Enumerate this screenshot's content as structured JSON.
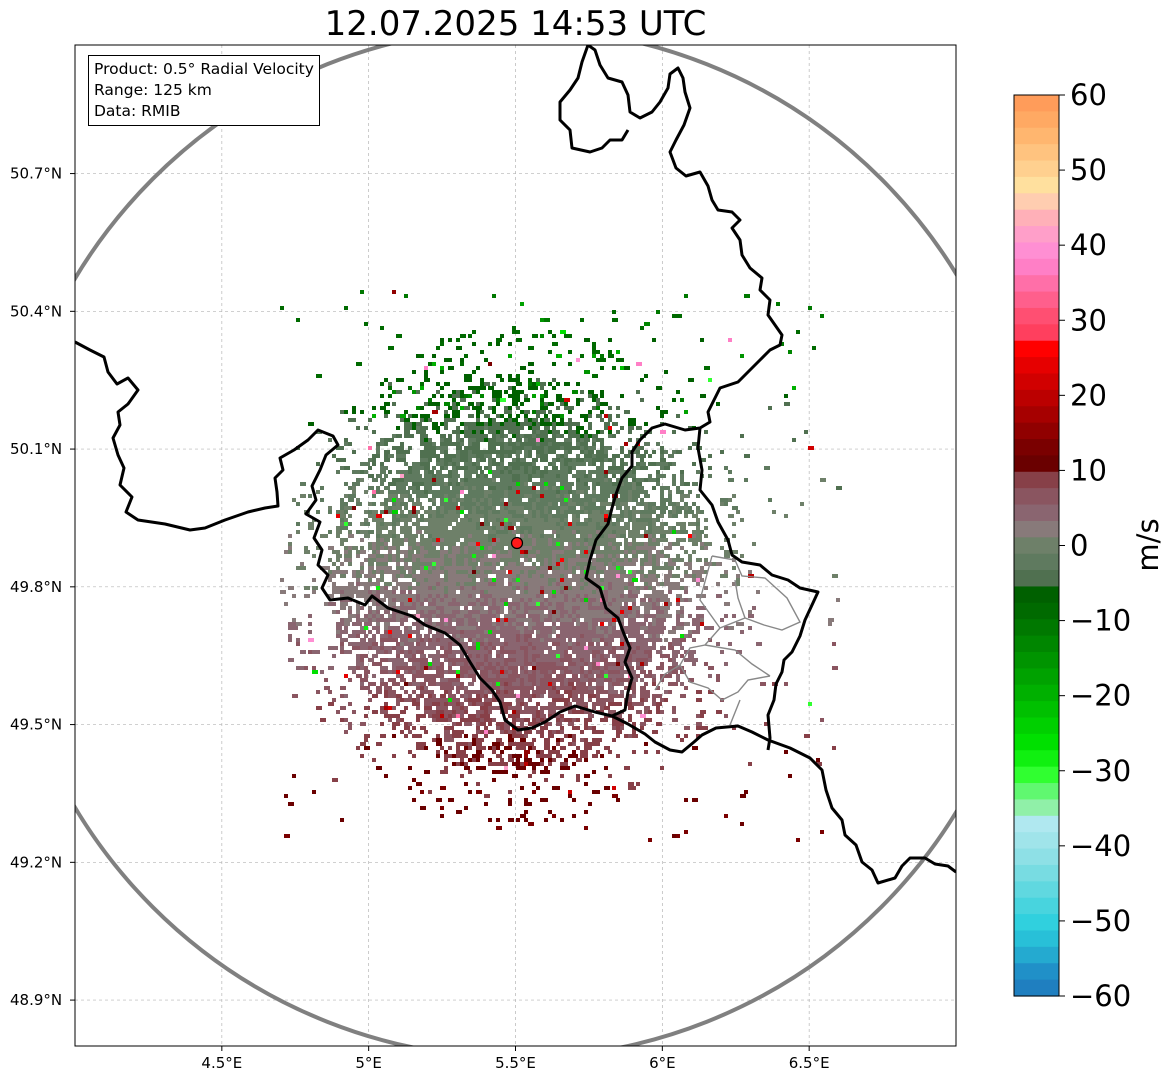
{
  "title": "12.07.2025 14:53 UTC",
  "info_box": {
    "product": "Product: 0.5° Radial Velocity",
    "range": "Range: 125 km",
    "data": "Data: RMIB"
  },
  "map": {
    "lon_range": [
      4.0,
      7.0
    ],
    "lat_range": [
      48.8,
      50.98
    ],
    "x_ticks": [
      {
        "value": 4.5,
        "label": "4.5°E"
      },
      {
        "value": 5.0,
        "label": "5°E"
      },
      {
        "value": 5.5,
        "label": "5.5°E"
      },
      {
        "value": 6.0,
        "label": "6°E"
      },
      {
        "value": 6.5,
        "label": "6.5°E"
      }
    ],
    "y_ticks": [
      {
        "value": 48.9,
        "label": "48.9°N"
      },
      {
        "value": 49.2,
        "label": "49.2°N"
      },
      {
        "value": 49.5,
        "label": "49.5°N"
      },
      {
        "value": 49.8,
        "label": "49.8°N"
      },
      {
        "value": 50.1,
        "label": "50.1°N"
      },
      {
        "value": 50.4,
        "label": "50.4°N"
      },
      {
        "value": 50.7,
        "label": "50.7°N"
      }
    ],
    "radar_site": {
      "lon": 5.505,
      "lat": 49.914
    },
    "range_km": 125,
    "grid": true
  },
  "colorbar": {
    "label": "m/s",
    "min": -60,
    "max": 60,
    "ticks": [
      "60",
      "50",
      "40",
      "30",
      "20",
      "10",
      "0",
      "−10",
      "−20",
      "−30",
      "−40",
      "−50",
      "−60"
    ],
    "colors_top_to_bottom": [
      "#ff9c5a",
      "#ffa963",
      "#ffb66f",
      "#ffc37f",
      "#ffd08f",
      "#ffe09e",
      "#ffcdb0",
      "#ffb0b8",
      "#ff9fc9",
      "#ff8fd3",
      "#ff7fc6",
      "#ff6fa8",
      "#ff5f8c",
      "#ff4f72",
      "#ff3f5e",
      "#ff0000",
      "#e60000",
      "#d10000",
      "#bb0000",
      "#a60000",
      "#900000",
      "#7a0000",
      "#6a0000",
      "#874048",
      "#8a5560",
      "#8a6570",
      "#887a7a",
      "#6e8069",
      "#5f7a5f",
      "#507050",
      "#006000",
      "#006a00",
      "#007800",
      "#008600",
      "#009400",
      "#00a200",
      "#00b000",
      "#00c000",
      "#00d000",
      "#00e000",
      "#10f010",
      "#30ff30",
      "#60f870",
      "#90f0a8",
      "#b0e8f0",
      "#a0e4ea",
      "#8ee0e6",
      "#78dce2",
      "#60d8e0",
      "#48d4de",
      "#30d0de",
      "#28c0d8",
      "#24aad0",
      "#2090c8",
      "#1f7fc0"
    ]
  }
}
